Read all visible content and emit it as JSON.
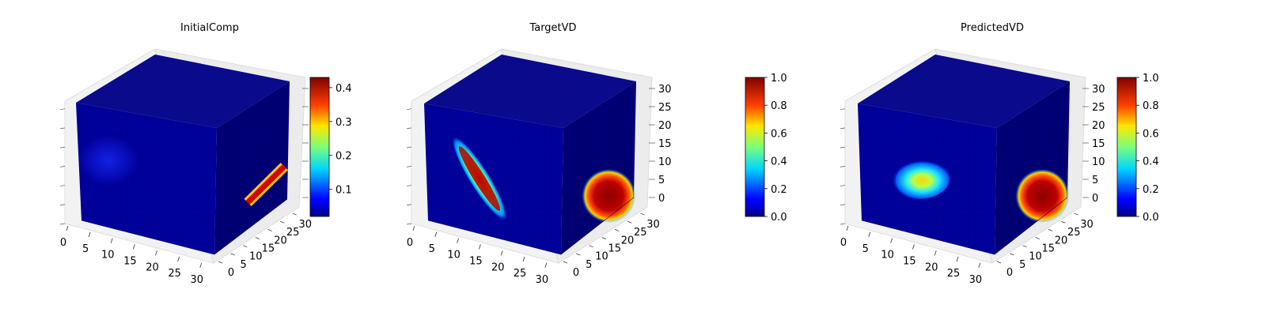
{
  "chart_data": [
    {
      "type": "heatmap",
      "subtype": "3d-voxel-cube",
      "title": "InitialComp",
      "x_ticks": [
        "0",
        "5",
        "10",
        "15",
        "20",
        "25",
        "30"
      ],
      "y_ticks": [
        "0",
        "5",
        "10",
        "15",
        "20",
        "25",
        "30"
      ],
      "z_ticks": [],
      "xlim": [
        0,
        32
      ],
      "ylim": [
        0,
        32
      ],
      "zlim": [
        0,
        32
      ],
      "colormap": "jet",
      "colorbar": {
        "range": [
          0.02,
          0.43
        ],
        "ticks": [
          "0.1",
          "0.2",
          "0.3",
          "0.4"
        ]
      },
      "grid": true,
      "features": [
        {
          "face": "front",
          "shape": "blob",
          "center": [
            7,
            18
          ],
          "radii": [
            5,
            5
          ],
          "peak": 0.1
        },
        {
          "face": "side",
          "shape": "streak",
          "peak": 0.43
        }
      ]
    },
    {
      "type": "heatmap",
      "subtype": "3d-voxel-cube",
      "title": "TargetVD",
      "x_ticks": [
        "0",
        "5",
        "10",
        "15",
        "20",
        "25",
        "30"
      ],
      "y_ticks": [
        "0",
        "5",
        "10",
        "15",
        "20",
        "25",
        "30"
      ],
      "z_ticks": [
        "0",
        "5",
        "10",
        "15",
        "20",
        "25",
        "30"
      ],
      "xlim": [
        0,
        32
      ],
      "ylim": [
        0,
        32
      ],
      "zlim": [
        0,
        32
      ],
      "colormap": "jet",
      "colorbar": {
        "range": [
          0.0,
          1.0
        ],
        "ticks": [
          "0.0",
          "0.2",
          "0.4",
          "0.6",
          "0.8",
          "1.0"
        ]
      },
      "grid": true,
      "features": [
        {
          "face": "front",
          "shape": "diagonal-ellipse",
          "peak": 1.0
        },
        {
          "face": "side",
          "shape": "blob",
          "peak": 1.0
        }
      ]
    },
    {
      "type": "heatmap",
      "subtype": "3d-voxel-cube",
      "title": "PredictedVD",
      "x_ticks": [
        "0",
        "5",
        "10",
        "15",
        "20",
        "25",
        "30"
      ],
      "y_ticks": [
        "0",
        "5",
        "10",
        "15",
        "20",
        "25",
        "30"
      ],
      "z_ticks": [
        "0",
        "5",
        "10",
        "15",
        "20",
        "25",
        "30"
      ],
      "xlim": [
        0,
        32
      ],
      "ylim": [
        0,
        32
      ],
      "zlim": [
        0,
        32
      ],
      "colormap": "jet",
      "colorbar": {
        "range": [
          0.0,
          1.0
        ],
        "ticks": [
          "0.0",
          "0.2",
          "0.4",
          "0.6",
          "0.8",
          "1.0"
        ]
      },
      "grid": true,
      "features": [
        {
          "face": "front",
          "shape": "blob",
          "center": [
            14,
            15
          ],
          "radii": [
            5,
            4
          ],
          "peak": 0.7
        },
        {
          "face": "side",
          "shape": "blob",
          "peak": 1.0
        }
      ]
    }
  ]
}
